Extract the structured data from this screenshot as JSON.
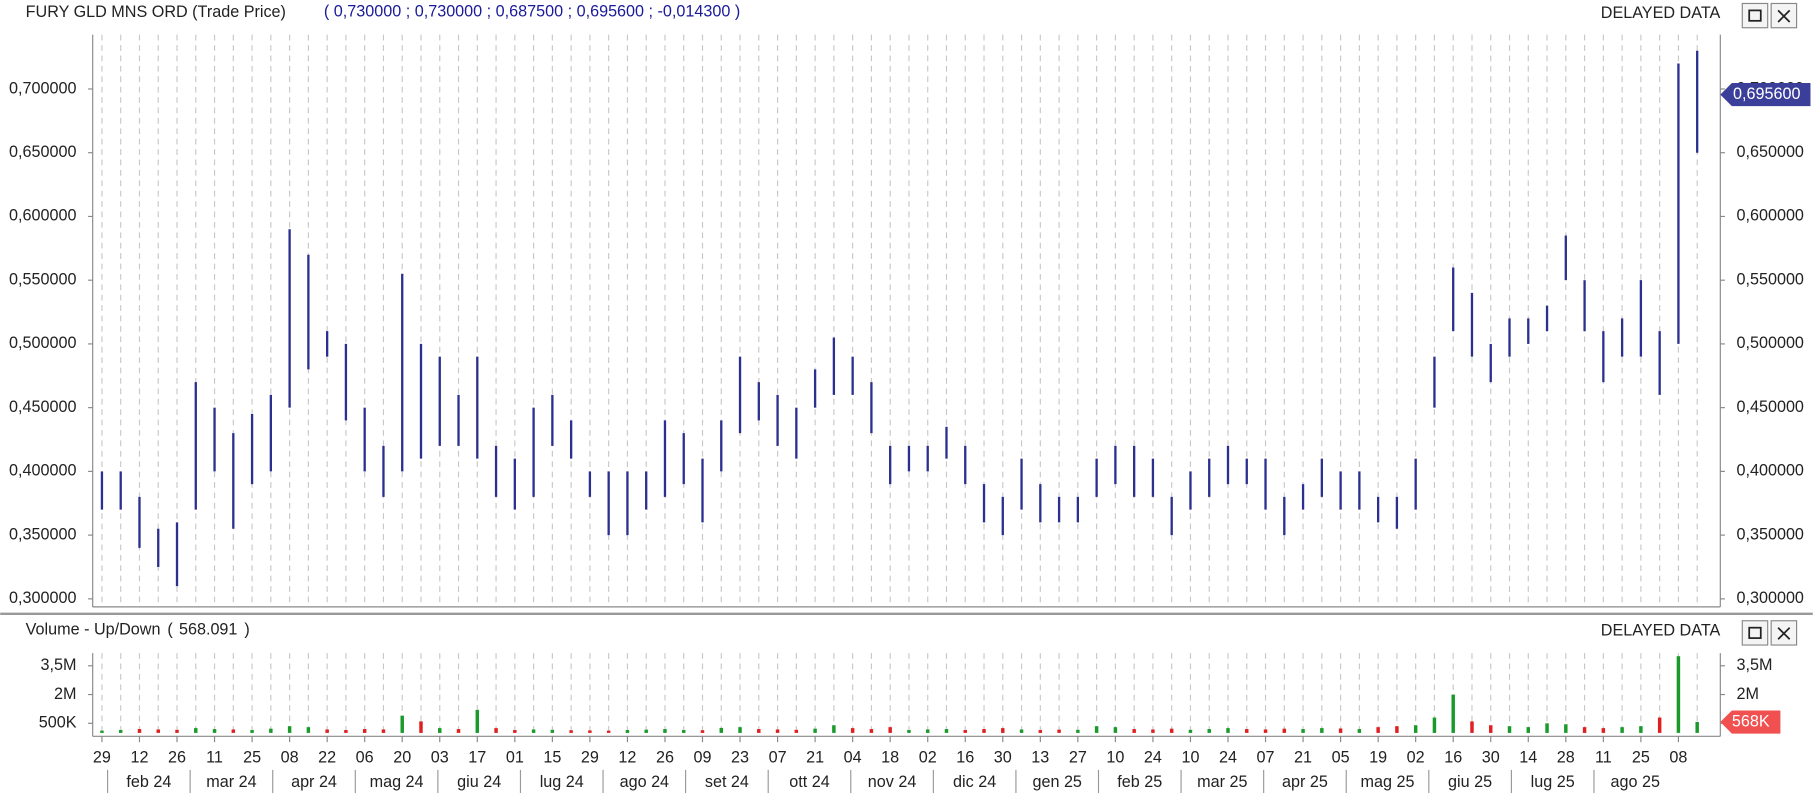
{
  "header": {
    "quote": [
      "0,730000",
      "0,730000",
      "0,687500",
      "0,695600",
      "-0,014300"
    ],
    "status": "DELAYED DATA"
  },
  "x_axis": {
    "days": [
      "29",
      "12",
      "26",
      "11",
      "25",
      "08",
      "22",
      "06",
      "20",
      "03",
      "17",
      "01",
      "15",
      "29",
      "12",
      "26",
      "09",
      "23",
      "07",
      "21",
      "04",
      "18",
      "02",
      "16",
      "30",
      "13",
      "27",
      "10",
      "24",
      "10",
      "24",
      "07",
      "21",
      "05",
      "19",
      "02",
      "16",
      "30",
      "14",
      "28",
      "11",
      "25",
      "08"
    ],
    "months": [
      "feb 24",
      "mar 24",
      "apr 24",
      "mag 24",
      "giu 24",
      "lug 24",
      "ago 24",
      "set 24",
      "ott 24",
      "nov 24",
      "dic 24",
      "gen 25",
      "feb 25",
      "mar 25",
      "apr 25",
      "mag 25",
      "giu 25",
      "lug 25",
      "ago 25"
    ]
  },
  "chart_data": [
    {
      "type": "ohlc",
      "title": "FURY GLD MNS ORD (Trade Price)",
      "color": "#2b2f8f",
      "high": [
        0.4,
        0.4,
        0.38,
        0.355,
        0.36,
        0.47,
        0.45,
        0.43,
        0.445,
        0.46,
        0.59,
        0.57,
        0.51,
        0.5,
        0.45,
        0.42,
        0.555,
        0.5,
        0.49,
        0.46,
        0.49,
        0.42,
        0.41,
        0.45,
        0.46,
        0.44,
        0.4,
        0.4,
        0.4,
        0.4,
        0.44,
        0.43,
        0.41,
        0.44,
        0.49,
        0.47,
        0.46,
        0.45,
        0.48,
        0.505,
        0.49,
        0.47,
        0.42,
        0.42,
        0.42,
        0.435,
        0.42,
        0.39,
        0.38,
        0.41,
        0.39,
        0.38,
        0.38,
        0.41,
        0.42,
        0.42,
        0.41,
        0.38,
        0.4,
        0.41,
        0.42,
        0.41,
        0.41,
        0.38,
        0.39,
        0.41,
        0.4,
        0.4,
        0.38,
        0.38,
        0.41,
        0.49,
        0.56,
        0.54,
        0.5,
        0.52,
        0.52,
        0.53,
        0.585,
        0.55,
        0.51,
        0.52,
        0.55,
        0.51,
        0.72,
        0.73
      ],
      "low": [
        0.37,
        0.37,
        0.34,
        0.325,
        0.31,
        0.37,
        0.4,
        0.355,
        0.39,
        0.4,
        0.45,
        0.48,
        0.49,
        0.44,
        0.4,
        0.38,
        0.4,
        0.41,
        0.42,
        0.42,
        0.41,
        0.38,
        0.37,
        0.38,
        0.42,
        0.41,
        0.38,
        0.35,
        0.35,
        0.37,
        0.38,
        0.39,
        0.36,
        0.4,
        0.43,
        0.44,
        0.42,
        0.41,
        0.45,
        0.46,
        0.46,
        0.43,
        0.39,
        0.4,
        0.4,
        0.41,
        0.39,
        0.36,
        0.35,
        0.37,
        0.36,
        0.36,
        0.36,
        0.38,
        0.39,
        0.38,
        0.38,
        0.35,
        0.37,
        0.38,
        0.39,
        0.39,
        0.37,
        0.35,
        0.37,
        0.38,
        0.37,
        0.37,
        0.36,
        0.355,
        0.37,
        0.45,
        0.51,
        0.49,
        0.47,
        0.49,
        0.5,
        0.51,
        0.55,
        0.51,
        0.47,
        0.49,
        0.49,
        0.46,
        0.5,
        0.65
      ],
      "last": {
        "value": 0.6956,
        "label": "0,695600"
      },
      "ylim": [
        0.2937,
        0.7426
      ],
      "yticks": [
        {
          "value": 0.3,
          "label": "0,300000"
        },
        {
          "value": 0.35,
          "label": "0,350000"
        },
        {
          "value": 0.4,
          "label": "0,400000"
        },
        {
          "value": 0.45,
          "label": "0,450000"
        },
        {
          "value": 0.5,
          "label": "0,500000"
        },
        {
          "value": 0.55,
          "label": "0,550000"
        },
        {
          "value": 0.6,
          "label": "0,600000"
        },
        {
          "value": 0.65,
          "label": "0,650000"
        },
        {
          "value": 0.7,
          "label": "0,700000"
        }
      ]
    },
    {
      "type": "volume",
      "title": "Volume - Up/Down",
      "up_color": "#1a9a2a",
      "down_color": "#e02020",
      "values": [
        120000,
        150000,
        200000,
        180000,
        160000,
        250000,
        200000,
        180000,
        150000,
        220000,
        350000,
        300000,
        180000,
        150000,
        200000,
        180000,
        900000,
        600000,
        250000,
        200000,
        1200000,
        250000,
        150000,
        180000,
        160000,
        140000,
        130000,
        120000,
        150000,
        170000,
        200000,
        150000,
        140000,
        260000,
        300000,
        200000,
        180000,
        160000,
        220000,
        400000,
        250000,
        200000,
        300000,
        150000,
        180000,
        200000,
        150000,
        200000,
        250000,
        180000,
        150000,
        170000,
        160000,
        350000,
        300000,
        200000,
        180000,
        220000,
        160000,
        200000,
        250000,
        200000,
        180000,
        220000,
        200000,
        250000,
        230000,
        200000,
        300000,
        350000,
        400000,
        800000,
        2000000,
        600000,
        400000,
        350000,
        300000,
        500000,
        450000,
        300000,
        250000,
        300000,
        350000,
        800000,
        4000000,
        568091
      ],
      "last": {
        "value": 568091,
        "label": "568.091"
      },
      "last_tag": {
        "value": 568091,
        "label": "568K"
      },
      "ylim": [
        -180000,
        4160000
      ],
      "yticks": [
        {
          "value": 500000,
          "label": "500K"
        },
        {
          "value": 2000000,
          "label": "2M"
        },
        {
          "value": 3500000,
          "label": "3,5M"
        }
      ]
    }
  ]
}
